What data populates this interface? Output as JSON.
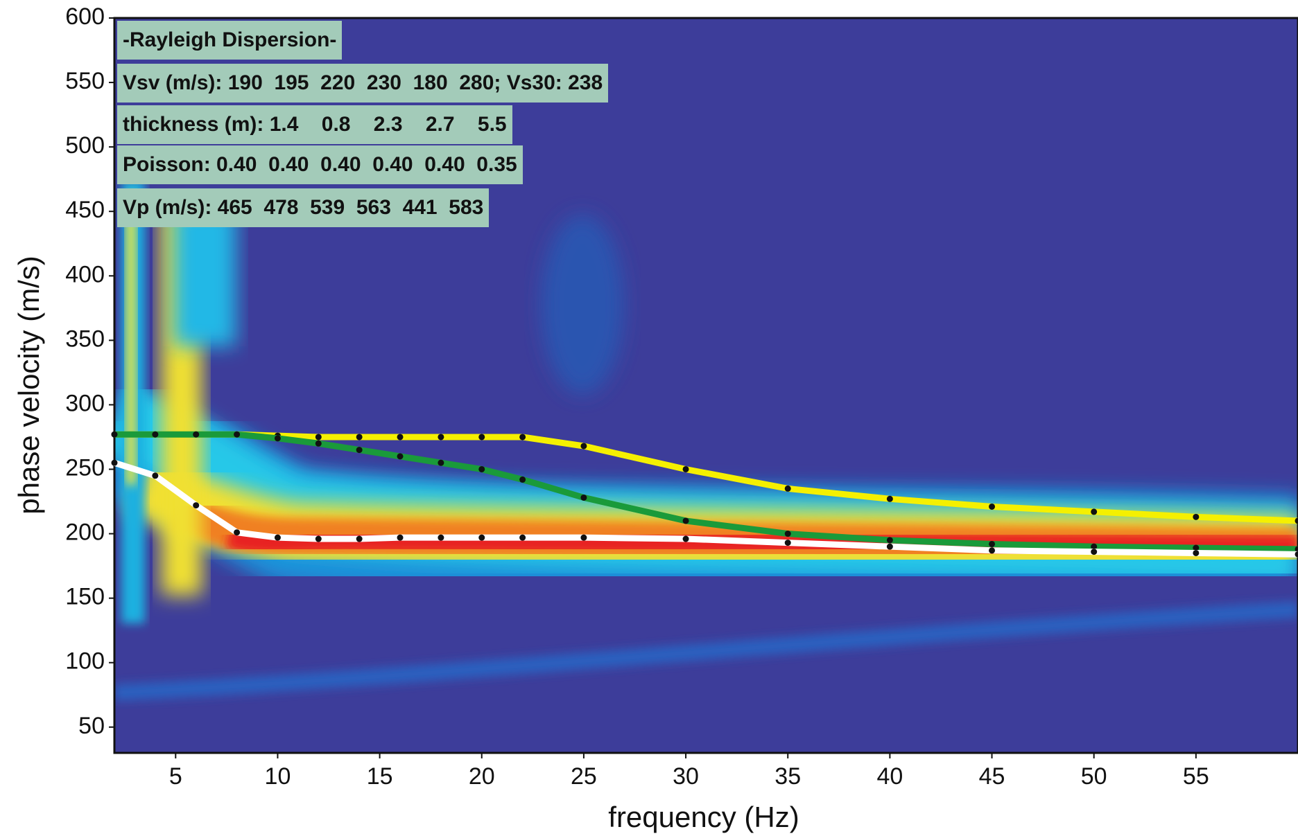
{
  "chart_data": {
    "type": "line",
    "x_label": "frequency (Hz)",
    "y_label": "phase velocity (m/s)",
    "xlim": [
      2,
      60
    ],
    "ylim": [
      30,
      600
    ],
    "xticks": [
      5,
      10,
      15,
      20,
      25,
      30,
      35,
      40,
      45,
      50,
      55
    ],
    "yticks": [
      50,
      100,
      150,
      200,
      250,
      300,
      350,
      400,
      450,
      500,
      550,
      600
    ],
    "annotations": [
      "-Rayleigh Dispersion-",
      "Vsv (m/s): 190  195  220  230  180  280; Vs30: 238",
      "thickness (m): 1.4    0.8    2.3    2.7    5.5",
      "Poisson: 0.40  0.40  0.40  0.40  0.40  0.35",
      "Vp (m/s): 465  478  539  563  441  583"
    ],
    "x": [
      2,
      4,
      6,
      8,
      10,
      12,
      14,
      16,
      18,
      20,
      22,
      25,
      30,
      35,
      40,
      45,
      50,
      55,
      60
    ],
    "series": [
      {
        "name": "yellow",
        "color": "#f5f000",
        "values": [
          277,
          277,
          277,
          277,
          276,
          275,
          275,
          275,
          275,
          275,
          275,
          268,
          250,
          235,
          227,
          221,
          217,
          213,
          210
        ]
      },
      {
        "name": "green",
        "color": "#1a9a3a",
        "values": [
          277,
          277,
          277,
          277,
          274,
          270,
          265,
          260,
          255,
          250,
          242,
          228,
          210,
          200,
          195,
          192,
          190,
          189,
          188
        ]
      },
      {
        "name": "white",
        "color": "#ffffff",
        "values": [
          255,
          245,
          222,
          201,
          197,
          196,
          196,
          197,
          197,
          197,
          197,
          197,
          196,
          193,
          190,
          187,
          186,
          185,
          184
        ]
      }
    ]
  }
}
